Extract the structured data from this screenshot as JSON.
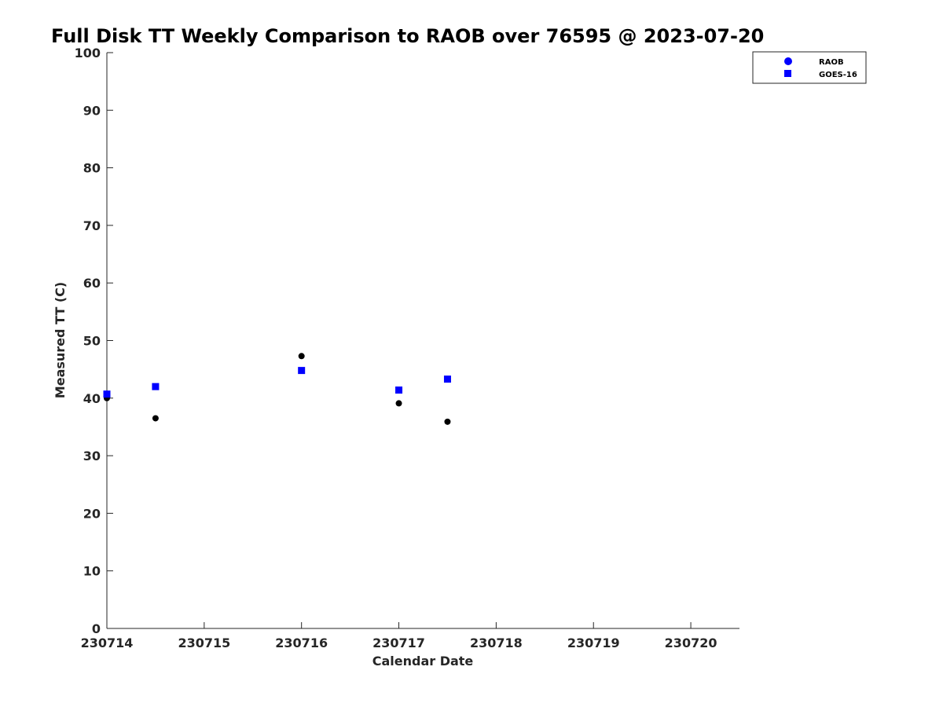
{
  "chart_data": {
    "type": "scatter",
    "title": "Full Disk TT Weekly Comparison to RAOB over 76595 @ 2023-07-20",
    "xlabel": "Calendar Date",
    "ylabel": "Measured TT (C)",
    "xlim": [
      "230714",
      "230720.5"
    ],
    "ylim": [
      0,
      100
    ],
    "x_ticks": [
      "230714",
      "230715",
      "230716",
      "230717",
      "230718",
      "230719",
      "230720"
    ],
    "y_ticks": [
      0,
      10,
      20,
      30,
      40,
      50,
      60,
      70,
      80,
      90,
      100
    ],
    "grid": false,
    "legend_position": "top-right (outside axes)",
    "series": [
      {
        "name": "RAOB",
        "marker": "circle",
        "color": "#000000",
        "legend_color": "#0000ff",
        "points": [
          {
            "x": "2023-07-14 00Z",
            "y": 40.0
          },
          {
            "x": "2023-07-14 12Z",
            "y": 36.5
          },
          {
            "x": "2023-07-16 00Z",
            "y": 47.3
          },
          {
            "x": "2023-07-17 00Z",
            "y": 39.1
          },
          {
            "x": "2023-07-17 12Z",
            "y": 35.9
          }
        ]
      },
      {
        "name": "GOES-16",
        "marker": "square",
        "color": "#0000ff",
        "legend_color": "#0000ff",
        "points": [
          {
            "x": "2023-07-14 00Z",
            "y": 40.7
          },
          {
            "x": "2023-07-14 12Z",
            "y": 42.0
          },
          {
            "x": "2023-07-16 00Z",
            "y": 44.8
          },
          {
            "x": "2023-07-17 00Z",
            "y": 41.4
          },
          {
            "x": "2023-07-17 12Z",
            "y": 43.3
          }
        ]
      }
    ]
  }
}
